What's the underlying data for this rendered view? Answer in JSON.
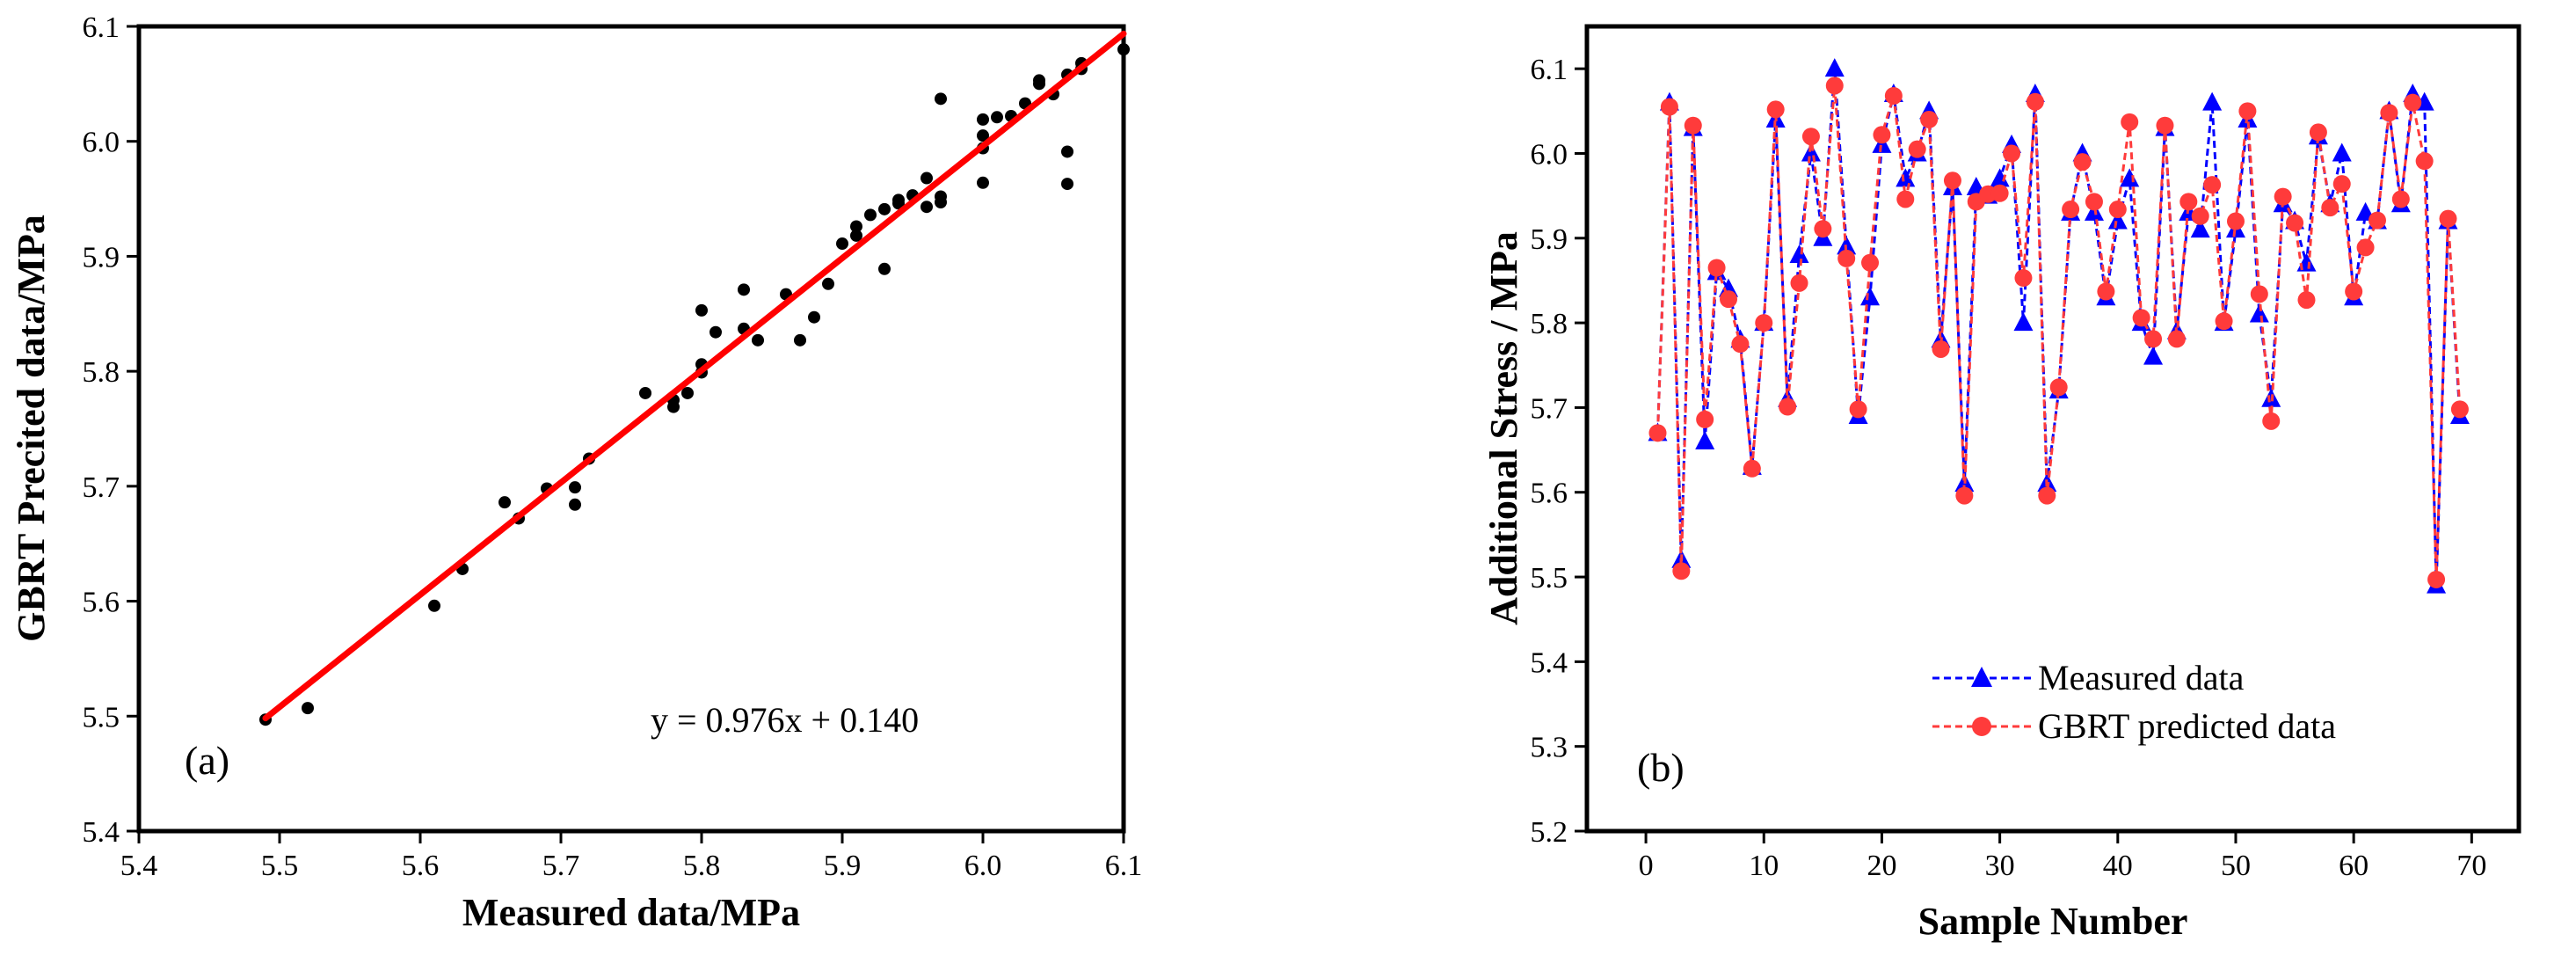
{
  "chart_data": [
    {
      "panel": "(a)",
      "type": "scatter",
      "xlabel": "Measured data/MPa",
      "ylabel": "GBRT Precited data/MPa",
      "xlim": [
        5.4,
        6.1
      ],
      "ylim": [
        5.4,
        6.1
      ],
      "xticks": [
        5.4,
        5.5,
        5.6,
        5.7,
        5.8,
        5.9,
        6.0,
        6.1
      ],
      "yticks": [
        5.4,
        5.5,
        5.6,
        5.7,
        5.8,
        5.9,
        6.0,
        6.1
      ],
      "xtick_labels": [
        "5.4",
        "5.5",
        "5.6",
        "5.7",
        "5.8",
        "5.9",
        "6.0",
        "6.1"
      ],
      "ytick_labels": [
        "5.4",
        "5.5",
        "5.6",
        "5.7",
        "5.8",
        "5.9",
        "6.0",
        "6.1"
      ],
      "equation": "y = 0.976x + 0.140",
      "fit": {
        "slope": 0.976,
        "intercept": 0.14,
        "x_range": [
          5.49,
          6.1
        ],
        "color": "#ff0000"
      },
      "point_color": "#000000",
      "points": [
        [
          5.49,
          5.497
        ],
        [
          5.52,
          5.507
        ],
        [
          5.61,
          5.596
        ],
        [
          5.63,
          5.628
        ],
        [
          5.66,
          5.686
        ],
        [
          5.67,
          5.672
        ],
        [
          5.69,
          5.698
        ],
        [
          5.71,
          5.684
        ],
        [
          5.71,
          5.699
        ],
        [
          5.72,
          5.724
        ],
        [
          5.76,
          5.781
        ],
        [
          5.78,
          5.769
        ],
        [
          5.78,
          5.775
        ],
        [
          5.79,
          5.781
        ],
        [
          5.8,
          5.799
        ],
        [
          5.8,
          5.806
        ],
        [
          5.8,
          5.853
        ],
        [
          5.81,
          5.834
        ],
        [
          5.83,
          5.837
        ],
        [
          5.83,
          5.871
        ],
        [
          5.84,
          5.827
        ],
        [
          5.86,
          5.867
        ],
        [
          5.87,
          5.827
        ],
        [
          5.88,
          5.847
        ],
        [
          5.89,
          5.876
        ],
        [
          5.9,
          5.911
        ],
        [
          5.91,
          5.918
        ],
        [
          5.91,
          5.926
        ],
        [
          5.92,
          5.936
        ],
        [
          5.93,
          5.941
        ],
        [
          5.93,
          5.889
        ],
        [
          5.94,
          5.946
        ],
        [
          5.94,
          5.949
        ],
        [
          5.95,
          5.953
        ],
        [
          5.96,
          5.943
        ],
        [
          5.96,
          5.968
        ],
        [
          5.97,
          5.947
        ],
        [
          5.97,
          5.952
        ],
        [
          5.97,
          6.037
        ],
        [
          6.0,
          5.964
        ],
        [
          6.0,
          5.994
        ],
        [
          6.0,
          6.005
        ],
        [
          6.0,
          6.019
        ],
        [
          6.01,
          6.021
        ],
        [
          6.02,
          6.022
        ],
        [
          6.03,
          6.033
        ],
        [
          6.04,
          6.05
        ],
        [
          6.04,
          6.053
        ],
        [
          6.05,
          6.041
        ],
        [
          6.06,
          6.058
        ],
        [
          6.06,
          5.991
        ],
        [
          6.06,
          5.963
        ],
        [
          6.07,
          6.063
        ],
        [
          6.07,
          6.068
        ],
        [
          6.1,
          6.08
        ]
      ]
    },
    {
      "panel": "(b)",
      "type": "line",
      "xlabel": "Sample Number",
      "ylabel": "Additional Stress / MPa",
      "xlim": [
        -5,
        74
      ],
      "ylim": [
        5.2,
        6.15
      ],
      "xticks": [
        0,
        10,
        20,
        30,
        40,
        50,
        60,
        70
      ],
      "yticks": [
        5.2,
        5.3,
        5.4,
        5.5,
        5.6,
        5.7,
        5.8,
        5.9,
        6.0,
        6.1
      ],
      "xtick_labels": [
        "0",
        "10",
        "20",
        "30",
        "40",
        "50",
        "60",
        "70"
      ],
      "ytick_labels": [
        "5.2",
        "5.3",
        "5.4",
        "5.5",
        "5.6",
        "5.7",
        "5.8",
        "5.9",
        "6.0",
        "6.1"
      ],
      "legend_position": "bottom-center",
      "series": [
        {
          "name": "Measured data",
          "color": "#0000ff",
          "marker": "triangle",
          "values": [
            5.67,
            6.06,
            5.52,
            6.03,
            5.66,
            5.86,
            5.84,
            5.78,
            5.63,
            5.8,
            6.04,
            5.71,
            5.88,
            6.0,
            5.9,
            6.1,
            5.89,
            5.69,
            5.83,
            6.01,
            6.07,
            5.97,
            6.0,
            6.05,
            5.78,
            5.96,
            5.61,
            5.96,
            5.95,
            5.97,
            6.01,
            5.8,
            6.07,
            5.61,
            5.72,
            5.93,
            6.0,
            5.93,
            5.83,
            5.92,
            5.97,
            5.8,
            5.76,
            6.03,
            5.79,
            5.93,
            5.91,
            6.06,
            5.8,
            5.91,
            6.04,
            5.81,
            5.71,
            5.94,
            5.92,
            5.87,
            6.02,
            5.94,
            6.0,
            5.83,
            5.93,
            5.92,
            6.05,
            5.94,
            6.07,
            6.06,
            5.49,
            5.92,
            5.69
          ]
        },
        {
          "name": "GBRT predicted data",
          "color": "#ff3b3b",
          "marker": "circle",
          "values": [
            5.67,
            6.055,
            5.507,
            6.033,
            5.686,
            5.865,
            5.828,
            5.775,
            5.628,
            5.8,
            6.052,
            5.701,
            5.847,
            6.02,
            5.911,
            6.08,
            5.876,
            5.698,
            5.871,
            6.022,
            6.068,
            5.946,
            6.005,
            6.04,
            5.769,
            5.968,
            5.596,
            5.943,
            5.952,
            5.953,
            6.0,
            5.853,
            6.061,
            5.596,
            5.724,
            5.934,
            5.99,
            5.943,
            5.837,
            5.934,
            6.037,
            5.806,
            5.781,
            6.033,
            5.781,
            5.943,
            5.926,
            5.963,
            5.802,
            5.92,
            6.05,
            5.834,
            5.684,
            5.949,
            5.918,
            5.827,
            6.025,
            5.936,
            5.964,
            5.837,
            5.889,
            5.921,
            6.048,
            5.946,
            6.06,
            5.991,
            5.497,
            5.923,
            5.698
          ]
        }
      ]
    }
  ]
}
